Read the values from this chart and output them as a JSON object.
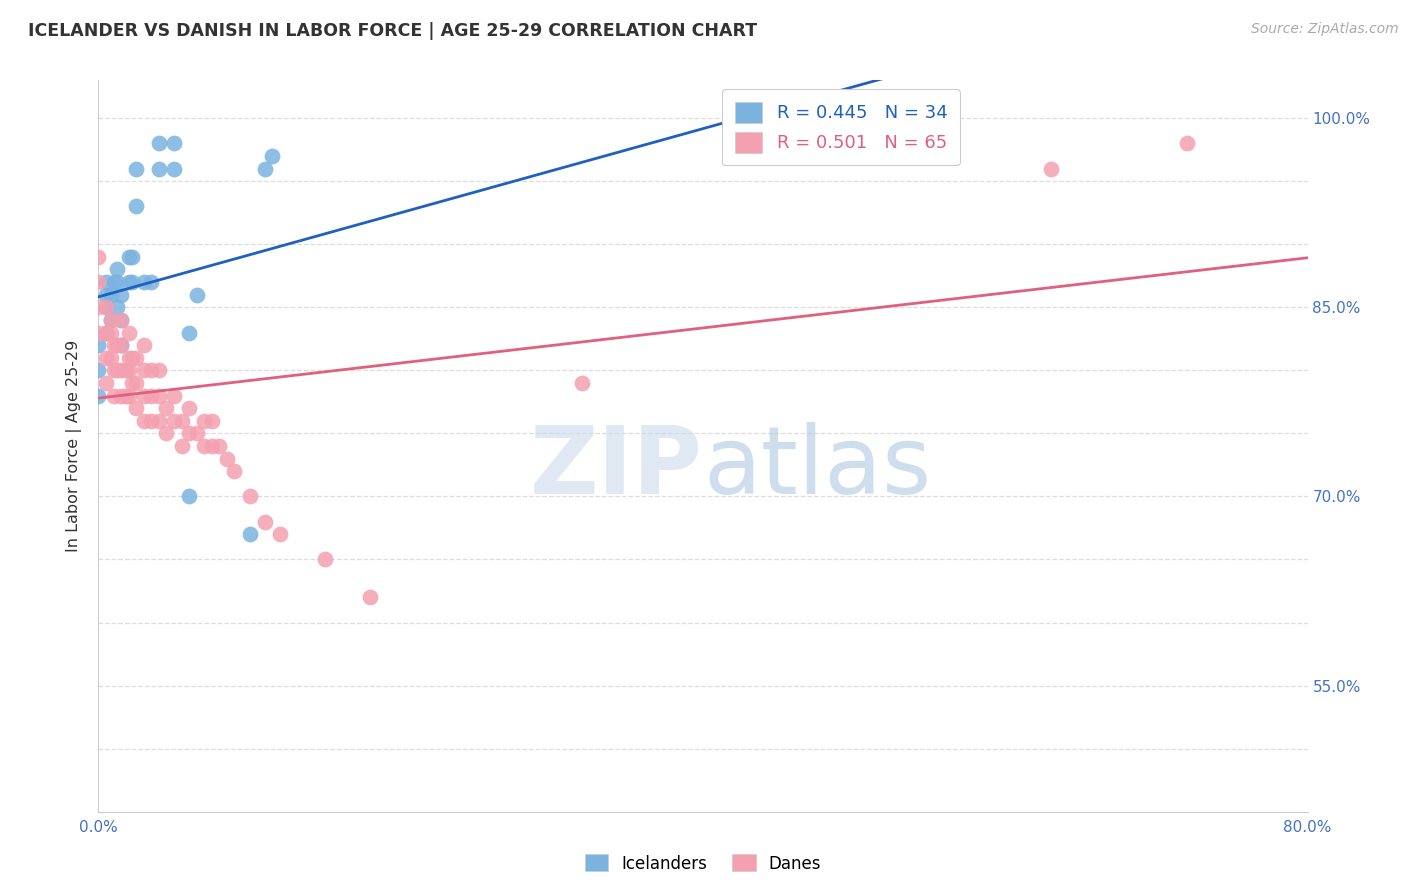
{
  "title": "ICELANDER VS DANISH IN LABOR FORCE | AGE 25-29 CORRELATION CHART",
  "source_text": "Source: ZipAtlas.com",
  "ylabel": "In Labor Force | Age 25-29",
  "xlim": [
    0.0,
    0.8
  ],
  "ylim": [
    0.45,
    1.03
  ],
  "icelander_color": "#7ab3e0",
  "danish_color": "#f4a0b0",
  "icelander_line_color": "#2060c0",
  "danish_line_color": "#e06080",
  "R_icelander": 0.445,
  "N_icelander": 34,
  "R_danish": 0.501,
  "N_danish": 65,
  "icelander_x": [
    0.0,
    0.0,
    0.0,
    0.005,
    0.005,
    0.005,
    0.005,
    0.008,
    0.008,
    0.01,
    0.012,
    0.012,
    0.012,
    0.015,
    0.015,
    0.015,
    0.02,
    0.02,
    0.022,
    0.022,
    0.025,
    0.025,
    0.03,
    0.035,
    0.04,
    0.04,
    0.05,
    0.05,
    0.06,
    0.06,
    0.065,
    0.1,
    0.11,
    0.115
  ],
  "icelander_y": [
    0.78,
    0.8,
    0.82,
    0.83,
    0.85,
    0.86,
    0.87,
    0.84,
    0.86,
    0.87,
    0.85,
    0.87,
    0.88,
    0.82,
    0.84,
    0.86,
    0.87,
    0.89,
    0.87,
    0.89,
    0.93,
    0.96,
    0.87,
    0.87,
    0.96,
    0.98,
    0.96,
    0.98,
    0.7,
    0.83,
    0.86,
    0.67,
    0.96,
    0.97
  ],
  "danish_x": [
    0.0,
    0.0,
    0.0,
    0.0,
    0.005,
    0.005,
    0.005,
    0.005,
    0.008,
    0.008,
    0.008,
    0.01,
    0.01,
    0.01,
    0.012,
    0.012,
    0.015,
    0.015,
    0.015,
    0.015,
    0.018,
    0.018,
    0.02,
    0.02,
    0.02,
    0.02,
    0.022,
    0.022,
    0.025,
    0.025,
    0.025,
    0.03,
    0.03,
    0.03,
    0.03,
    0.035,
    0.035,
    0.035,
    0.04,
    0.04,
    0.04,
    0.045,
    0.045,
    0.05,
    0.05,
    0.055,
    0.055,
    0.06,
    0.06,
    0.065,
    0.07,
    0.07,
    0.075,
    0.075,
    0.08,
    0.085,
    0.09,
    0.1,
    0.11,
    0.12,
    0.15,
    0.18,
    0.32,
    0.63,
    0.72
  ],
  "danish_y": [
    0.83,
    0.85,
    0.87,
    0.89,
    0.79,
    0.81,
    0.83,
    0.85,
    0.81,
    0.83,
    0.84,
    0.78,
    0.8,
    0.82,
    0.8,
    0.82,
    0.78,
    0.8,
    0.82,
    0.84,
    0.78,
    0.8,
    0.78,
    0.8,
    0.81,
    0.83,
    0.79,
    0.81,
    0.77,
    0.79,
    0.81,
    0.76,
    0.78,
    0.8,
    0.82,
    0.76,
    0.78,
    0.8,
    0.76,
    0.78,
    0.8,
    0.75,
    0.77,
    0.76,
    0.78,
    0.74,
    0.76,
    0.75,
    0.77,
    0.75,
    0.74,
    0.76,
    0.74,
    0.76,
    0.74,
    0.73,
    0.72,
    0.7,
    0.68,
    0.67,
    0.65,
    0.62,
    0.79,
    0.96,
    0.98
  ],
  "background_color": "#ffffff",
  "grid_color": "#dddddd"
}
